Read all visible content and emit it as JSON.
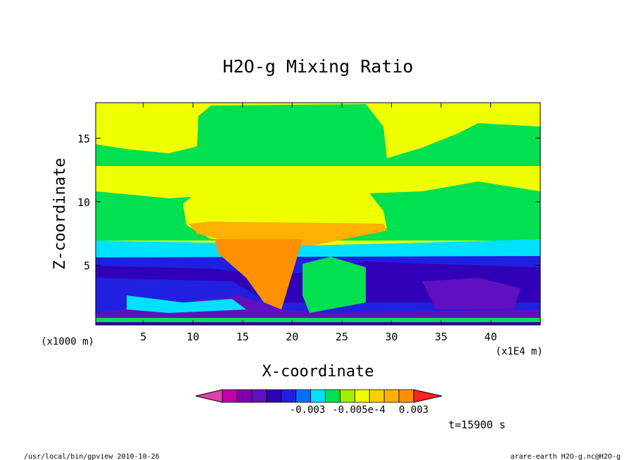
{
  "chart_data": {
    "type": "heatmap",
    "title": "H2O-g Mixing Ratio",
    "xlabel": "X-coordinate",
    "ylabel": "Z-coordinate",
    "x_unit_left": "(x1000 m)",
    "x_unit_right": "(x1E4 m)",
    "xlim": [
      0.2,
      45.0
    ],
    "ylim": [
      0.3,
      17.8
    ],
    "xticks": [
      5,
      10,
      15,
      20,
      25,
      30,
      35,
      40
    ],
    "yticks": [
      5,
      10,
      15
    ],
    "colorbar": {
      "colors": [
        "#e040b0",
        "#c000a8",
        "#8000b0",
        "#6010c0",
        "#3000b8",
        "#2020e0",
        "#0070ff",
        "#00e0ff",
        "#00e050",
        "#a0f000",
        "#f0ff00",
        "#ffd000",
        "#ffb000",
        "#ff9000",
        "#ff2020"
      ],
      "labels": [
        "-0.003",
        "-0.005e-4",
        "0.003"
      ]
    },
    "time_label": "t=15900 s",
    "footer_left": "/usr/local/bin/gpview  2010-10-26",
    "footer_right": "arare-earth_H2O-g.nc@H2O-g"
  }
}
